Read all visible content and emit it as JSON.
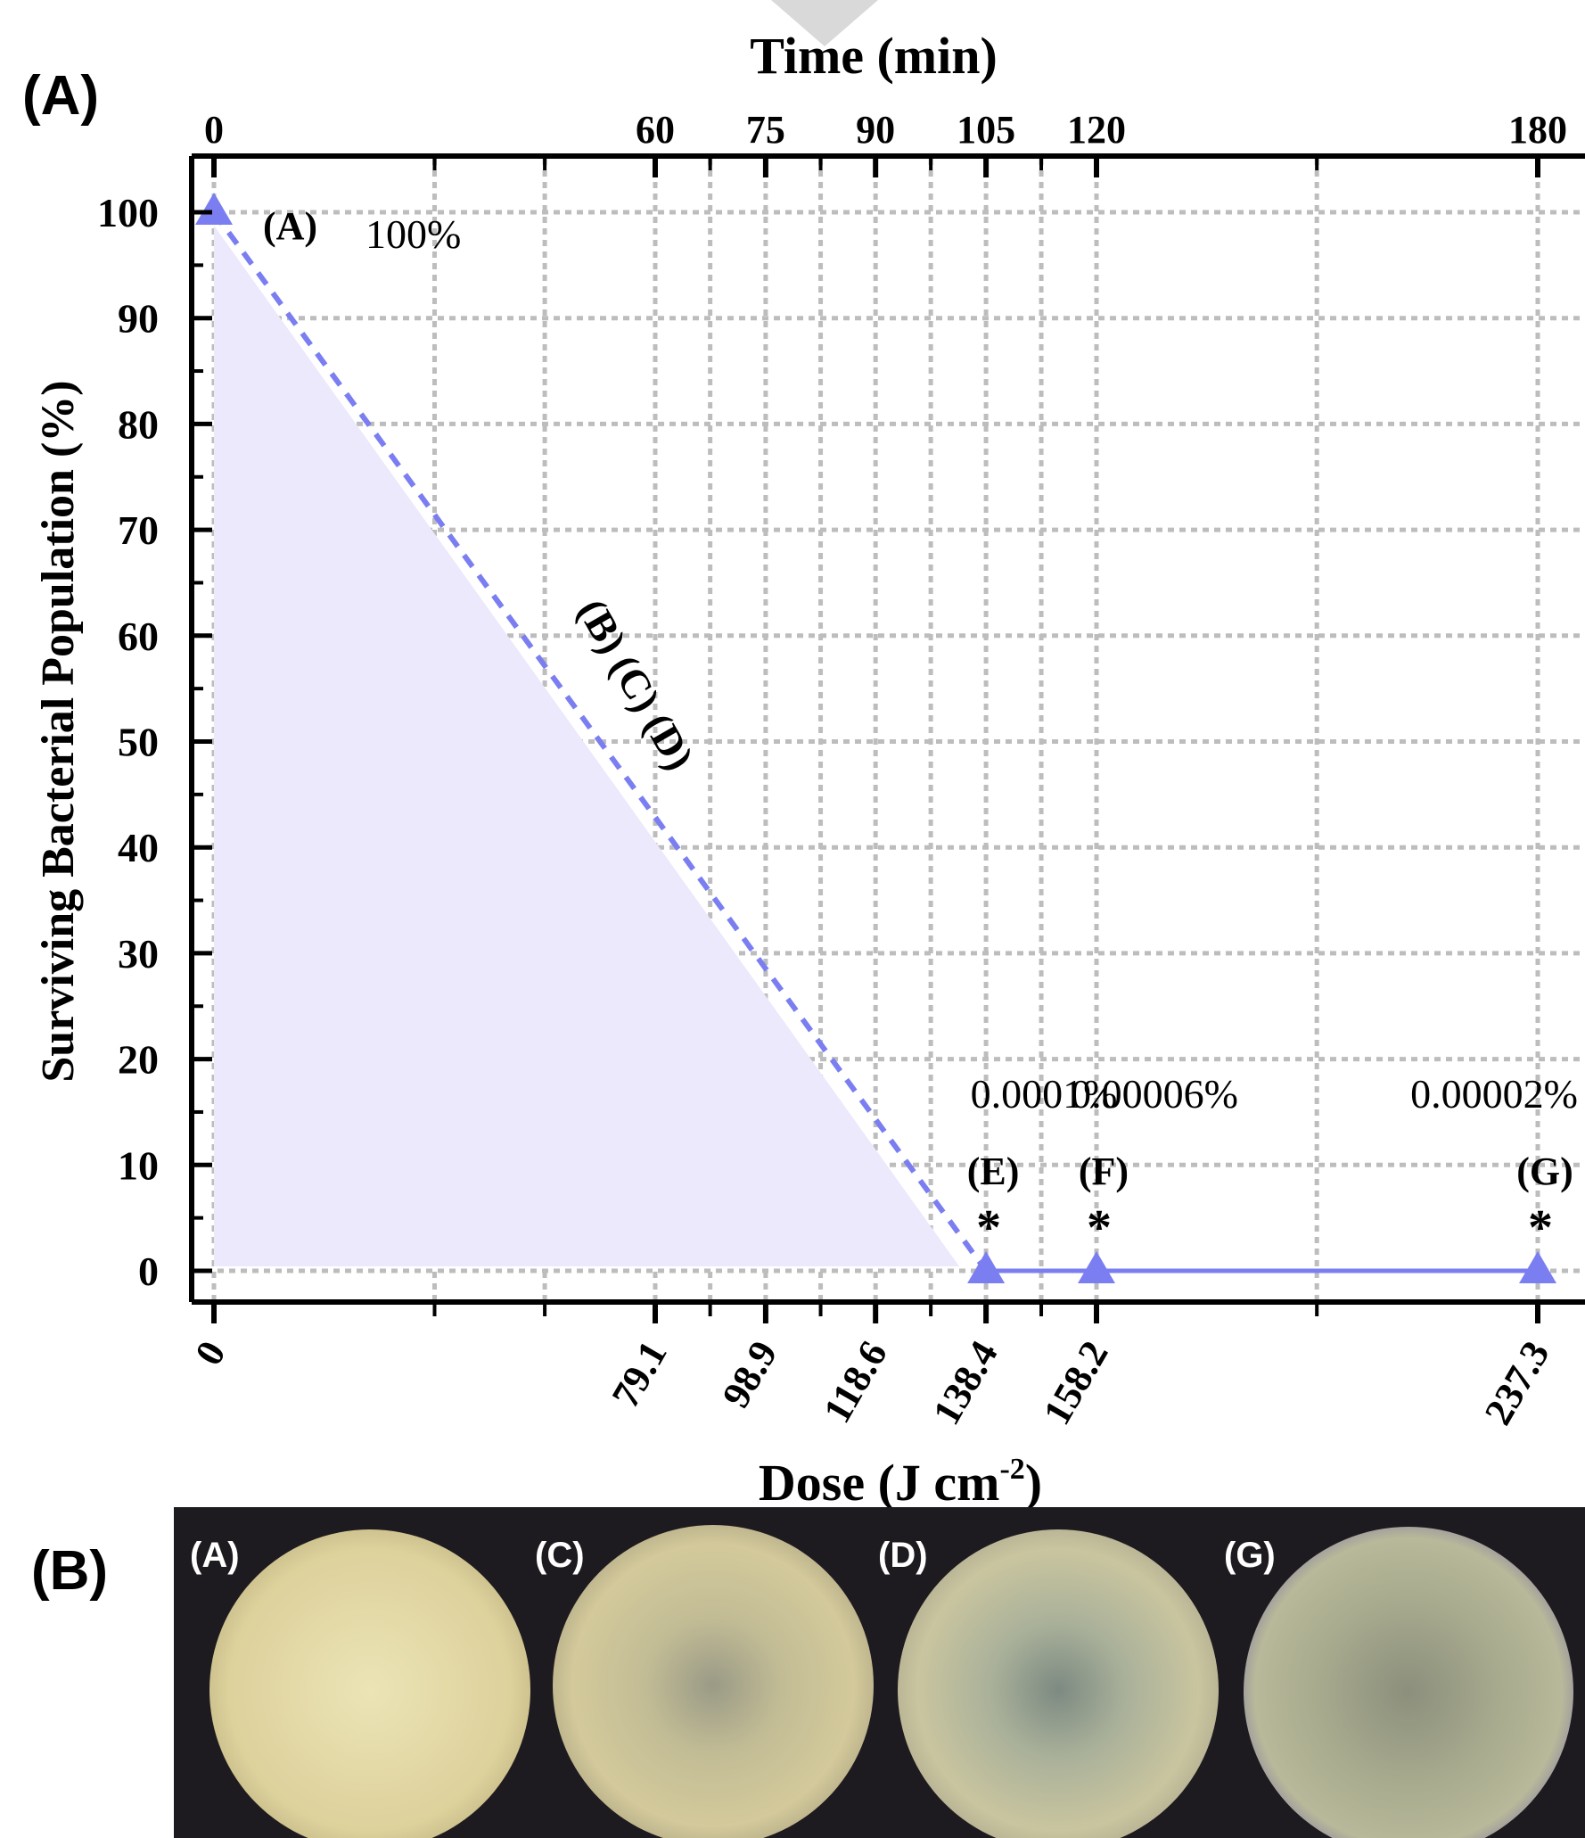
{
  "panel_a_label": "(A)",
  "panel_b_label": "(B)",
  "chart_data": {
    "type": "line",
    "xlabel": "Dose (J cm",
    "xlabel_sup": "-2",
    "xlabel_close": ")",
    "x2label": "Time (min)",
    "ylabel": "Surviving Bacterial Population (%)",
    "ylim": [
      0,
      100
    ],
    "xlim": [
      0,
      237.3
    ],
    "yticks": [
      "0",
      "10",
      "20",
      "30",
      "40",
      "50",
      "60",
      "70",
      "80",
      "90",
      "100"
    ],
    "xticks": [
      {
        "v": 0,
        "label": "0"
      },
      {
        "v": 79.1,
        "label": "79.1"
      },
      {
        "v": 98.9,
        "label": "98.9"
      },
      {
        "v": 118.6,
        "label": "118.6"
      },
      {
        "v": 138.4,
        "label": "138.4"
      },
      {
        "v": 158.2,
        "label": "158.2"
      },
      {
        "v": 237.3,
        "label": "237.3"
      }
    ],
    "x2ticks": [
      {
        "v": 0,
        "label": "0"
      },
      {
        "v": 79.1,
        "label": "60"
      },
      {
        "v": 98.9,
        "label": "75"
      },
      {
        "v": 118.6,
        "label": "90"
      },
      {
        "v": 138.4,
        "label": "105"
      },
      {
        "v": 158.2,
        "label": "120"
      },
      {
        "v": 237.3,
        "label": "180"
      }
    ],
    "series": [
      {
        "color": "#7b7ef0",
        "points": [
          {
            "x": 0,
            "y": 100,
            "label": "(A)",
            "value_label": "100%"
          },
          {
            "x": 138.4,
            "y": 0.0001,
            "label": "(E)",
            "value_label": "0.0001%",
            "marker": "*"
          },
          {
            "x": 158.2,
            "y": 6e-05,
            "label": "(F)",
            "value_label": "0.00006%",
            "marker": "*"
          },
          {
            "x": 237.3,
            "y": 2e-05,
            "label": "(G)",
            "value_label": "0.00002%",
            "marker": "*"
          }
        ]
      }
    ],
    "annotation": "(B) (C) (D)",
    "grid": true
  },
  "plates": [
    {
      "label": "(A)"
    },
    {
      "label": "(C)"
    },
    {
      "label": "(D)"
    },
    {
      "label": "(G)"
    }
  ]
}
